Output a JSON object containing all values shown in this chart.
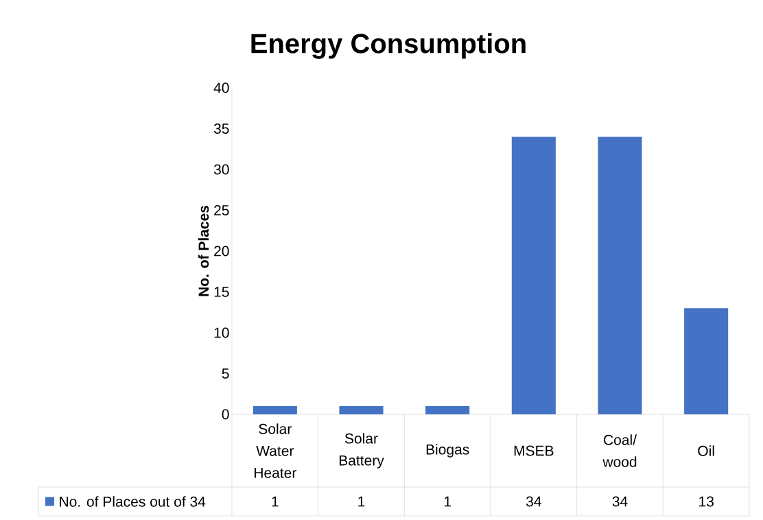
{
  "chart_data": {
    "type": "bar",
    "title": "Energy Consumption",
    "ylabel": "No. of Places",
    "categories": [
      "Solar Water Heater",
      "Solar Battery",
      "Biogas",
      "MSEB",
      "Coal/ wood",
      "Oil"
    ],
    "series": [
      {
        "name": "No. of Places out of 34",
        "color": "#4472c4",
        "values": [
          1,
          1,
          1,
          34,
          34,
          13
        ]
      }
    ],
    "ylim": [
      0,
      40
    ],
    "yticks": [
      0,
      5,
      10,
      15,
      20,
      25,
      30,
      35,
      40
    ],
    "data_labels": true,
    "legend": "bottom",
    "grid": false
  }
}
